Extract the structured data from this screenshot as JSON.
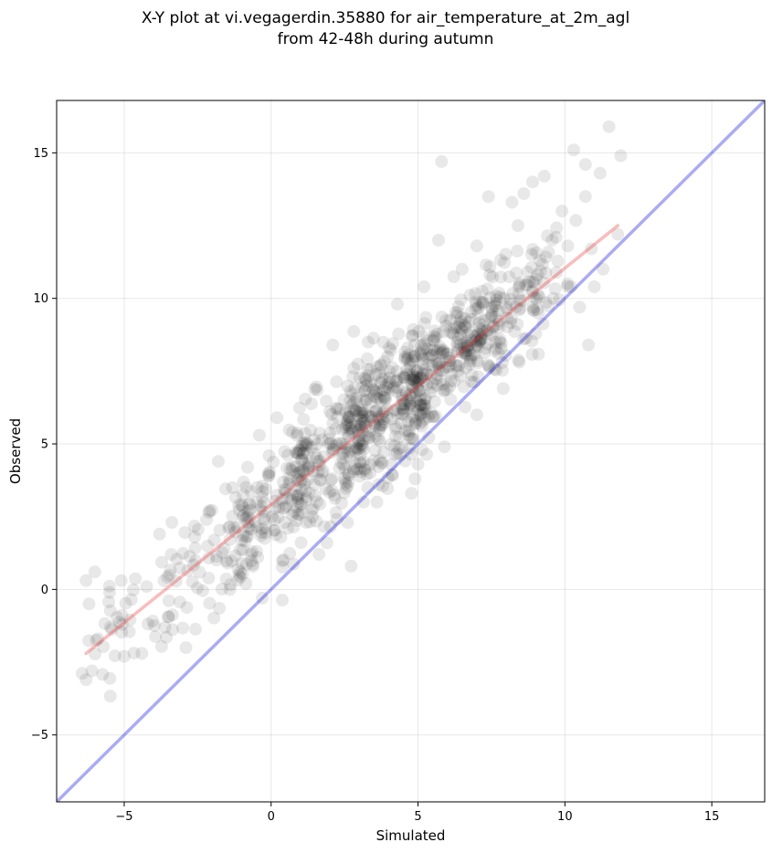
{
  "chart_data": {
    "type": "scatter",
    "title_line1": "X-Y plot at vi.vegagerdin.35880 for air_temperature_at_2m_agl",
    "title_line2": "from 42-48h during autumn",
    "xlabel": "Simulated",
    "ylabel": "Observed",
    "xlim": [
      -7.3,
      16.8
    ],
    "ylim": [
      -7.3,
      16.8
    ],
    "xticks": [
      -5,
      0,
      5,
      10,
      15
    ],
    "yticks": [
      -5,
      0,
      5,
      10,
      15
    ],
    "xtick_labels": [
      "−5",
      "0",
      "5",
      "10",
      "15"
    ],
    "ytick_labels": [
      "−5",
      "0",
      "5",
      "10",
      "15"
    ],
    "grid": true,
    "point_color": "#000000",
    "identity_line": {
      "x": [
        -7.3,
        16.8
      ],
      "y": [
        -7.3,
        16.8
      ],
      "color": "#0000dd"
    },
    "fit_line": {
      "x": [
        -6.3,
        11.8
      ],
      "y": [
        -2.2,
        12.5
      ],
      "color": "#ee3333"
    },
    "clusters": [
      {
        "n": 28,
        "x": [
          -6.4,
          -4.2
        ],
        "y": [
          -3.3,
          0.6
        ]
      },
      {
        "n": 45,
        "x": [
          -4.2,
          -1.8
        ],
        "y": [
          -2.2,
          2.6
        ]
      },
      {
        "n": 90,
        "x": [
          -2.0,
          0.2
        ],
        "y": [
          -0.6,
          4.5
        ]
      },
      {
        "n": 150,
        "x": [
          -0.2,
          2.2
        ],
        "y": [
          1.4,
          6.4
        ]
      },
      {
        "n": 220,
        "x": [
          1.8,
          4.4
        ],
        "y": [
          3.0,
          8.2
        ]
      },
      {
        "n": 220,
        "x": [
          3.6,
          6.2
        ],
        "y": [
          4.0,
          9.6
        ]
      },
      {
        "n": 170,
        "x": [
          5.6,
          8.2
        ],
        "y": [
          6.4,
          10.8
        ]
      },
      {
        "n": 70,
        "x": [
          7.6,
          10.0
        ],
        "y": [
          8.0,
          12.2
        ]
      }
    ],
    "points": [
      [
        -6.3,
        0.3
      ],
      [
        -6.0,
        0.6
      ],
      [
        -5.5,
        -0.1
      ],
      [
        -5.1,
        0.3
      ],
      [
        -6.2,
        -0.5
      ],
      [
        -6.1,
        -2.8
      ],
      [
        -6.3,
        -3.1
      ],
      [
        -5.0,
        -2.3
      ],
      [
        -4.4,
        -2.2
      ],
      [
        -3.8,
        1.9
      ],
      [
        -3.4,
        1.2
      ],
      [
        -2.9,
        -2.0
      ],
      [
        -2.6,
        1.8
      ],
      [
        -2.2,
        2.4
      ],
      [
        -1.8,
        4.4
      ],
      [
        -0.8,
        4.2
      ],
      [
        -0.4,
        5.3
      ],
      [
        0.2,
        5.9
      ],
      [
        -0.3,
        -0.3
      ],
      [
        -1.0,
        0.9
      ],
      [
        -1.6,
        1.4
      ],
      [
        1.9,
        1.6
      ],
      [
        2.6,
        2.3
      ],
      [
        3.6,
        3.0
      ],
      [
        4.9,
        3.8
      ],
      [
        5.0,
        4.3
      ],
      [
        5.9,
        4.9
      ],
      [
        7.0,
        6.0
      ],
      [
        7.9,
        6.9
      ],
      [
        8.6,
        8.6
      ],
      [
        9.6,
        10.0
      ],
      [
        10.2,
        10.4
      ],
      [
        10.8,
        8.4
      ],
      [
        11.0,
        10.4
      ],
      [
        10.5,
        9.7
      ],
      [
        2.1,
        8.4
      ],
      [
        4.3,
        9.8
      ],
      [
        5.2,
        10.4
      ],
      [
        5.7,
        12.0
      ],
      [
        5.8,
        14.7
      ],
      [
        7.4,
        13.5
      ],
      [
        8.2,
        13.3
      ],
      [
        8.6,
        13.6
      ],
      [
        8.9,
        14.0
      ],
      [
        9.3,
        14.2
      ],
      [
        9.9,
        13.0
      ],
      [
        10.3,
        15.1
      ],
      [
        10.7,
        14.6
      ],
      [
        10.7,
        13.5
      ],
      [
        11.2,
        14.3
      ],
      [
        11.5,
        15.9
      ],
      [
        11.9,
        14.9
      ],
      [
        11.8,
        12.2
      ],
      [
        10.1,
        11.8
      ],
      [
        9.7,
        12.1
      ],
      [
        8.4,
        12.5
      ],
      [
        7.0,
        11.8
      ],
      [
        6.5,
        11.0
      ],
      [
        11.3,
        11.0
      ],
      [
        10.9,
        11.7
      ]
    ]
  }
}
